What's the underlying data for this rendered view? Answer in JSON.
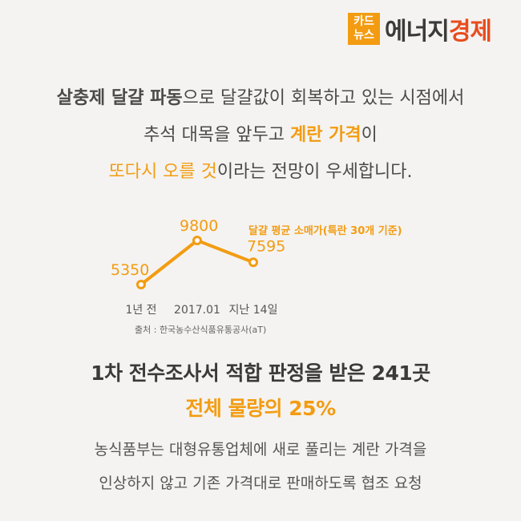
{
  "logo": {
    "box_line1": "카드",
    "box_line2": "뉴스",
    "brand_main": "에너지",
    "brand_accent": "경제",
    "brand_accent_color": "#e84c1e",
    "box_color": "#f39c12"
  },
  "intro": {
    "line1_bold": "살충제 달걀 파동",
    "line1_rest": "으로 달걀값이 회복하고 있는 시점에서",
    "line2_start": "추석 대목을 앞두고 ",
    "line2_highlight": "계란 가격",
    "line2_end": "이",
    "line3_highlight": "또다시 오를 것",
    "line3_rest": "이라는 전망이 우세합니다."
  },
  "chart_data": {
    "type": "line",
    "categories": [
      "1년 전",
      "2017.01",
      "지난 14일"
    ],
    "series": [
      {
        "name": "달걀 평균 소매가(특란 30개 기준)",
        "values": [
          5350,
          9800,
          7595
        ]
      }
    ],
    "title": "",
    "xlabel": "",
    "ylabel": "",
    "ylim": [
      5000,
      10000
    ],
    "grid": false,
    "legend_position": "top-right",
    "source": "출처 : 한국농수산식품유통공사(aT)",
    "line_color": "#f39c12"
  },
  "headline": "1차 전수조사서 적합 판정을 받은 241곳",
  "subheadline": "전체 물량의 25%",
  "body": {
    "line1": "농식품부는 대형유통업체에 새로 풀리는 계란 가격을",
    "line2": "인상하지 않고 기존 가격대로 판매하도록 협조 요청"
  }
}
